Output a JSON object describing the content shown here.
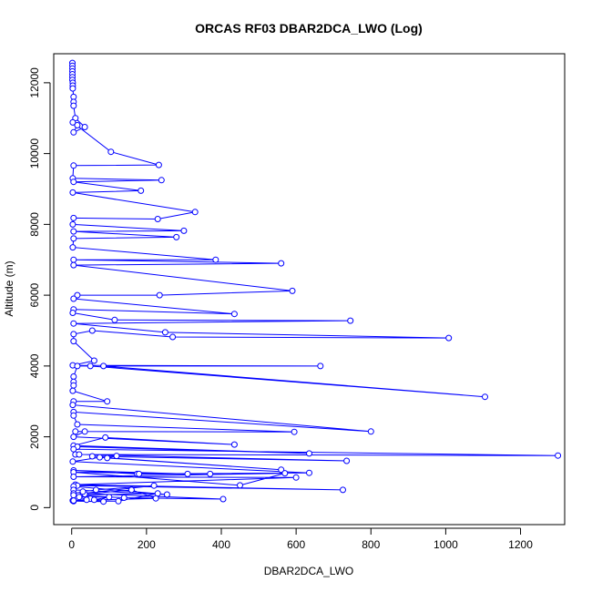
{
  "chart_data": {
    "type": "line",
    "title": "ORCAS RF03 DBAR2DCA_LWO (Log)",
    "xlabel": "DBAR2DCA_LWO",
    "ylabel": "Altitude (m)",
    "xlim": [
      -48,
      1318
    ],
    "ylim": [
      -480,
      12820
    ],
    "xticks": [
      0,
      200,
      400,
      600,
      800,
      1000,
      1200
    ],
    "yticks": [
      0,
      2000,
      4000,
      6000,
      8000,
      10000,
      12000
    ],
    "grid": false,
    "markers": "open-circle",
    "colors": {
      "series": "#0000ff",
      "axis": "#000000",
      "background": "#ffffff"
    },
    "series": [
      {
        "values": [
          [
            2,
            12560
          ],
          [
            2,
            12480
          ],
          [
            2,
            12400
          ],
          [
            2,
            12320
          ],
          [
            2,
            12240
          ],
          [
            2,
            12160
          ],
          [
            2,
            12080
          ],
          [
            3,
            12000
          ],
          [
            3,
            11920
          ],
          [
            3,
            11840
          ],
          [
            5,
            11600
          ],
          [
            5,
            11460
          ],
          [
            5,
            11350
          ],
          [
            10,
            11000
          ],
          [
            35,
            10750
          ],
          [
            5,
            10600
          ],
          [
            15,
            10800
          ],
          [
            3,
            10880
          ],
          [
            105,
            10050
          ],
          [
            233,
            9680
          ],
          [
            5,
            9660
          ],
          [
            3,
            9300
          ],
          [
            240,
            9250
          ],
          [
            5,
            9200
          ],
          [
            185,
            8950
          ],
          [
            3,
            8900
          ],
          [
            330,
            8350
          ],
          [
            230,
            8150
          ],
          [
            5,
            8180
          ],
          [
            3,
            8000
          ],
          [
            300,
            7820
          ],
          [
            5,
            7800
          ],
          [
            280,
            7640
          ],
          [
            5,
            7600
          ],
          [
            3,
            7350
          ],
          [
            385,
            7000
          ],
          [
            5,
            7000
          ],
          [
            560,
            6900
          ],
          [
            5,
            6850
          ],
          [
            590,
            6120
          ],
          [
            235,
            6000
          ],
          [
            15,
            6000
          ],
          [
            5,
            5900
          ],
          [
            435,
            5470
          ],
          [
            5,
            5600
          ],
          [
            3,
            5500
          ],
          [
            115,
            5300
          ],
          [
            745,
            5280
          ],
          [
            5,
            5200
          ],
          [
            250,
            4950
          ],
          [
            1008,
            4790
          ],
          [
            270,
            4820
          ],
          [
            55,
            5000
          ],
          [
            5,
            4900
          ],
          [
            5,
            4700
          ],
          [
            60,
            4150
          ],
          [
            3,
            4020
          ],
          [
            665,
            4000
          ],
          [
            85,
            4000
          ],
          [
            1105,
            3130
          ],
          [
            50,
            4000
          ],
          [
            15,
            4000
          ],
          [
            5,
            3700
          ],
          [
            5,
            3550
          ],
          [
            5,
            3450
          ],
          [
            3,
            3300
          ],
          [
            95,
            3000
          ],
          [
            5,
            3000
          ],
          [
            3,
            2900
          ],
          [
            800,
            2150
          ],
          [
            5,
            2700
          ],
          [
            5,
            2600
          ],
          [
            15,
            2350
          ],
          [
            595,
            2140
          ],
          [
            10,
            2150
          ],
          [
            35,
            2150
          ],
          [
            5,
            2000
          ],
          [
            435,
            1780
          ],
          [
            90,
            1980
          ],
          [
            5,
            1750
          ],
          [
            635,
            1530
          ],
          [
            15,
            1720
          ],
          [
            5,
            1650
          ],
          [
            1300,
            1470
          ],
          [
            10,
            1500
          ],
          [
            20,
            1500
          ],
          [
            735,
            1320
          ],
          [
            55,
            1450
          ],
          [
            120,
            1460
          ],
          [
            95,
            1400
          ],
          [
            560,
            1070
          ],
          [
            75,
            1420
          ],
          [
            3,
            1300
          ],
          [
            635,
            980
          ],
          [
            175,
            950
          ],
          [
            5,
            1050
          ],
          [
            310,
            950
          ],
          [
            180,
            950
          ],
          [
            370,
            950
          ],
          [
            5,
            1000
          ],
          [
            450,
            630
          ],
          [
            570,
            970
          ],
          [
            5,
            870
          ],
          [
            600,
            850
          ],
          [
            10,
            650
          ],
          [
            725,
            500
          ],
          [
            15,
            620
          ],
          [
            5,
            600
          ],
          [
            255,
            370
          ],
          [
            5,
            500
          ],
          [
            5,
            400
          ],
          [
            65,
            500
          ],
          [
            220,
            620
          ],
          [
            30,
            400
          ],
          [
            405,
            240
          ],
          [
            140,
            280
          ],
          [
            5,
            350
          ],
          [
            230,
            400
          ],
          [
            125,
            180
          ],
          [
            3,
            200
          ],
          [
            225,
            260
          ],
          [
            160,
            500
          ],
          [
            35,
            380
          ],
          [
            30,
            450
          ],
          [
            50,
            250
          ],
          [
            5,
            180
          ],
          [
            85,
            170
          ],
          [
            5,
            200
          ],
          [
            40,
            220
          ],
          [
            20,
            300
          ],
          [
            100,
            300
          ],
          [
            60,
            220
          ]
        ]
      }
    ]
  }
}
